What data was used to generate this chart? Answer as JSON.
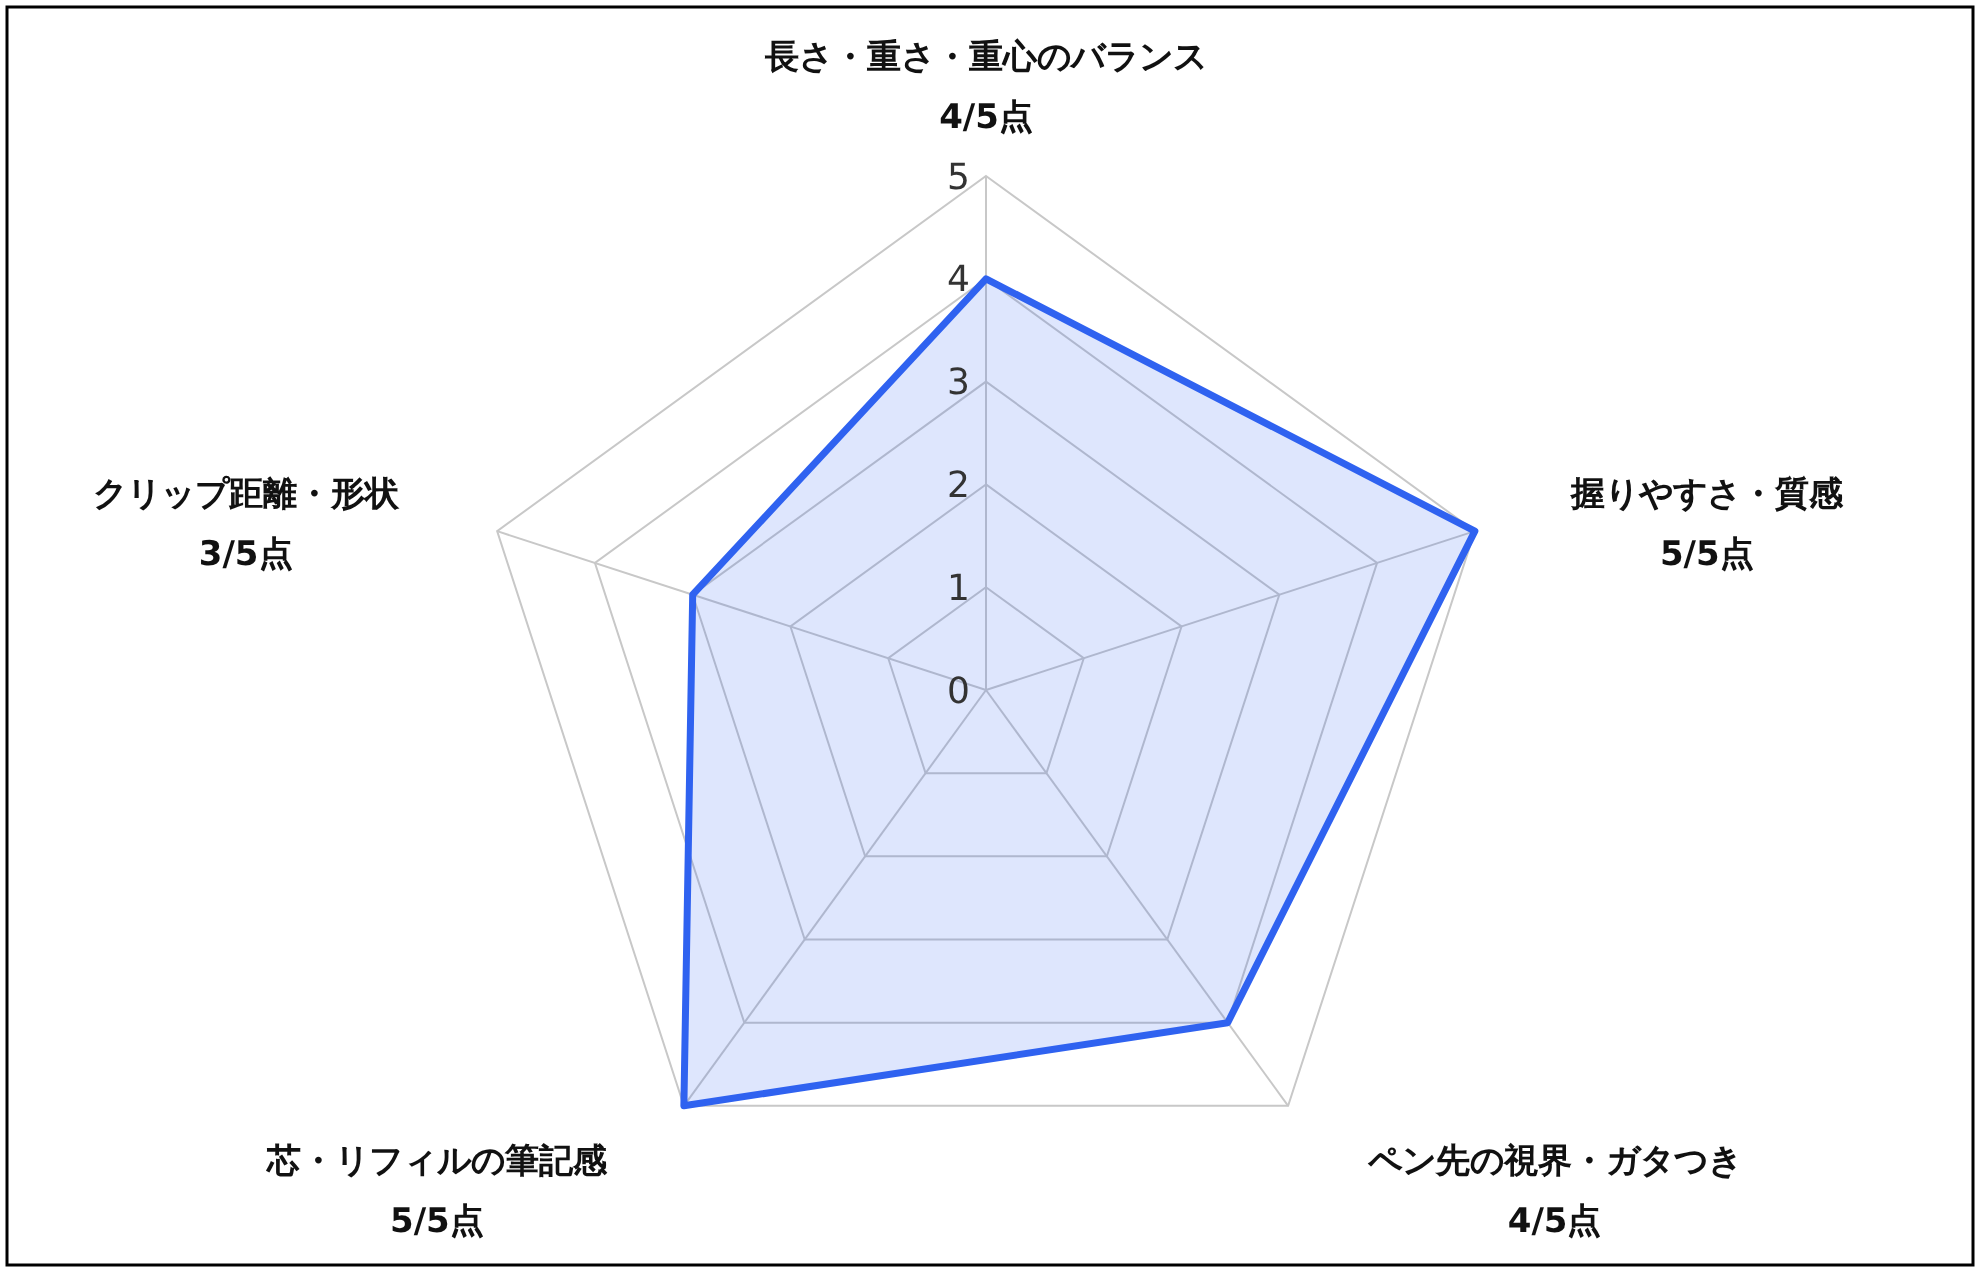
{
  "chart_data": {
    "type": "radar",
    "categories": [
      "長さ・重さ・重心のバランス",
      "握りやすさ・質感",
      "ペン先の視界・ガタつき",
      "芯・リフィルの筆記感",
      "クリップ距離・形状"
    ],
    "series": [
      {
        "color": "#2f62f0",
        "values": [
          4,
          5,
          4,
          5,
          3
        ]
      }
    ],
    "value_labels": [
      "4/5点",
      "5/5点",
      "4/5点",
      "5/5点",
      "3/5点"
    ],
    "ylim": [
      0,
      5
    ],
    "yticks": [
      0,
      1,
      2,
      3,
      4,
      5
    ],
    "grid": true,
    "marker": "none"
  }
}
